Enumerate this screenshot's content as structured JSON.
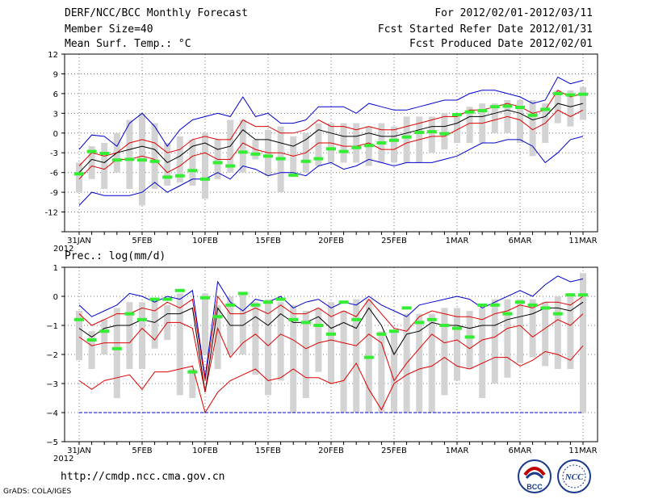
{
  "header": {
    "title": "DERF/NCC/BCC Monthly Forecast",
    "member": "Member Size=40",
    "variable": "Mean Surf. Temp.: °C",
    "period": "For 2012/02/01-2012/03/11",
    "started": "Fcst Started Refer Date 2012/01/31",
    "produced": "Fcst Produced Date 2012/02/01"
  },
  "prec_label": "Prec.: log(mm/d)",
  "footer": {
    "url": "http://cmdp.ncc.cma.gov.cn",
    "credit": "GrADS: COLA/IGES"
  },
  "logos": {
    "bcc": "BCC",
    "ncc": "NCC"
  },
  "colors": {
    "max_min": "#0000cc",
    "spread": "#dd0000",
    "mean": "#000000",
    "obs": "#33ee33",
    "box": "#d3d3d3",
    "grid": "#777777"
  },
  "chart_data": [
    {
      "type": "line",
      "title": "Mean Surf. Temp.: °C",
      "x_labels": [
        "31JAN\n2012",
        "5FEB",
        "10FEB",
        "15FEB",
        "20FEB",
        "25FEB",
        "1MAR",
        "6MAR",
        "11MAR"
      ],
      "x_label_index": [
        0,
        5,
        10,
        15,
        20,
        25,
        30,
        35,
        40
      ],
      "ylim": [
        -15,
        12
      ],
      "yticks": [
        12,
        9,
        6,
        3,
        0,
        -3,
        -6,
        -9,
        -12,
        -15
      ],
      "yticks_shown": [
        "12",
        "9",
        "6",
        "3",
        "0",
        "-3",
        "-6",
        "-9",
        "-12"
      ],
      "series": [
        {
          "name": "max",
          "color": "#0000cc",
          "values": [
            -2.5,
            -0.3,
            -0.5,
            -2,
            1.5,
            3,
            1,
            -2,
            0.5,
            2,
            2.5,
            3,
            2.5,
            5.5,
            2.5,
            3,
            1.5,
            1.5,
            2,
            4,
            4,
            4,
            3,
            4.5,
            4,
            3.5,
            3.5,
            4,
            4.5,
            5,
            5,
            6,
            6.5,
            6.5,
            6,
            5.5,
            4.5,
            5,
            8.5,
            7.5,
            8
          ]
        },
        {
          "name": "upper",
          "color": "#dd0000",
          "values": [
            -5,
            -3,
            -3.5,
            -3,
            -1.5,
            -1,
            -1.5,
            -3,
            -2.5,
            -1,
            -0.5,
            -1,
            -1,
            2,
            1,
            1,
            0,
            0,
            0.5,
            2,
            1,
            1,
            0.5,
            1,
            0.5,
            0.5,
            1,
            1.5,
            2,
            2.5,
            2.5,
            3.5,
            3.5,
            4,
            4.5,
            4,
            3,
            3.5,
            6.5,
            5.5,
            6
          ]
        },
        {
          "name": "mean",
          "color": "#000000",
          "values": [
            -6,
            -4,
            -4.5,
            -3,
            -2.5,
            -2,
            -2.5,
            -4.5,
            -3.5,
            -2,
            -1.5,
            -2.5,
            -2,
            0.5,
            -1,
            -1,
            -1.5,
            -2,
            -1,
            0.5,
            0,
            -0.5,
            -0.5,
            0,
            -0.5,
            -0.5,
            0,
            0.5,
            1,
            1,
            1.5,
            2.5,
            2.5,
            3,
            3.5,
            3,
            2,
            2.5,
            4.5,
            4,
            4.5
          ]
        },
        {
          "name": "lower",
          "color": "#dd0000",
          "values": [
            -7,
            -5,
            -5.5,
            -4,
            -4,
            -3.5,
            -4,
            -6,
            -5,
            -3.5,
            -3,
            -4,
            -4,
            -1.5,
            -2.5,
            -3,
            -3,
            -3.5,
            -3,
            -1.5,
            -1.5,
            -2,
            -2,
            -1.5,
            -2.5,
            -2.5,
            -1.5,
            -1,
            -0.5,
            -0.5,
            0.5,
            1.5,
            1.5,
            2,
            2.5,
            2,
            0.5,
            1.5,
            3.5,
            2.5,
            3.5
          ]
        },
        {
          "name": "min",
          "color": "#0000cc",
          "values": [
            -11,
            -9,
            -9.5,
            -9.5,
            -9.5,
            -9,
            -7.5,
            -9,
            -8,
            -7,
            -7,
            -6,
            -7,
            -5,
            -5.5,
            -6.5,
            -6,
            -6,
            -6.5,
            -5,
            -4.5,
            -5.5,
            -5,
            -4,
            -4.5,
            -5,
            -4.5,
            -4.5,
            -4.5,
            -4,
            -3.5,
            -2.5,
            -1.5,
            -1.5,
            -1,
            -1,
            -2,
            -4.5,
            -3,
            -1,
            -0.5
          ]
        },
        {
          "name": "observed",
          "color": "#33ee33",
          "values": [
            -6.2,
            -2.8,
            -3.1,
            -4.1,
            -4.0,
            -4.1,
            -4.3,
            -6.7,
            -6.5,
            -5.7,
            -7.0,
            -4.5,
            -5.0,
            -2.9,
            -3.2,
            -3.5,
            -3.9,
            -6.4,
            -4.3,
            -3.9,
            -2.4,
            -2.8,
            -2.2,
            -1.9,
            -1.5,
            -1.1,
            -0.6,
            0.1,
            0.2,
            -0.1,
            2.8,
            3.2,
            3.4,
            4.0,
            4.1,
            3.9,
            2.7,
            3.6,
            6.0,
            5.8,
            5.9
          ]
        }
      ],
      "boxes": {
        "high": [
          -4.5,
          -2,
          -1.5,
          0,
          2,
          3,
          1.5,
          -1.5,
          -0.5,
          -1,
          0,
          -1,
          2,
          2,
          -1,
          0.5,
          1,
          -0.5,
          0,
          1.5,
          1.5,
          1.5,
          1.5,
          1,
          1.5,
          1,
          2.5,
          2.5,
          2.5,
          3,
          3,
          4,
          4.5,
          4.5,
          5,
          5,
          5,
          4.5,
          6.5,
          6.5,
          7
        ],
        "low": [
          -9,
          -7,
          -8.5,
          -6,
          -8.5,
          -11,
          -8.5,
          -8,
          -7.5,
          -8,
          -10,
          -7,
          -6,
          -6,
          -4,
          -6.5,
          -9,
          -6.5,
          -6,
          -5,
          -4.5,
          -4.5,
          -4.5,
          -5,
          -4.5,
          -4.5,
          -4.5,
          -4.5,
          -3,
          -2.5,
          -1.5,
          -1.5,
          -1.5,
          0,
          0,
          -1.5,
          -3.5,
          -1.5,
          1.5,
          1,
          2
        ]
      }
    },
    {
      "type": "line",
      "title": "Prec.: log(mm/d)",
      "x_labels": [
        "31JAN\n2012",
        "5FEB",
        "10FEB",
        "15FEB",
        "20FEB",
        "25FEB",
        "1MAR",
        "6MAR",
        "11MAR"
      ],
      "x_label_index": [
        0,
        5,
        10,
        15,
        20,
        25,
        30,
        35,
        40
      ],
      "ylim": [
        -5,
        1
      ],
      "yticks": [
        1,
        0,
        -1,
        -2,
        -3,
        -4,
        -5
      ],
      "yticks_shown": [
        "1",
        "0",
        "−1",
        "−2",
        "−3",
        "−4",
        "−5"
      ],
      "series": [
        {
          "name": "max",
          "color": "#0000cc",
          "values": [
            -0.3,
            -0.7,
            -0.5,
            -0.3,
            0.1,
            0,
            -0.2,
            0,
            -0.1,
            0.2,
            -2.8,
            0.5,
            -0.2,
            -0.5,
            -0.1,
            -0.2,
            0,
            -0.4,
            -0.2,
            -0.1,
            -0.4,
            -0.2,
            -0.3,
            0,
            -0.3,
            -0.5,
            -0.7,
            -0.3,
            -0.2,
            -0.1,
            0,
            -0.1,
            -0.4,
            -0.2,
            0,
            0.2,
            0,
            0.4,
            0.7,
            0.5,
            0.6
          ]
        },
        {
          "name": "upper",
          "color": "#dd0000",
          "values": [
            -0.6,
            -1,
            -0.8,
            -0.6,
            -0.6,
            -0.4,
            -0.5,
            -0.2,
            -0.4,
            -0.1,
            -2.9,
            0,
            -0.6,
            -0.6,
            -0.4,
            -0.6,
            -0.3,
            -0.6,
            -0.6,
            -0.4,
            -0.7,
            -0.5,
            -0.7,
            -0.1,
            -0.6,
            -1.1,
            -1.2,
            -0.7,
            -0.5,
            -0.6,
            -0.7,
            -0.7,
            -0.8,
            -0.6,
            -0.5,
            -0.3,
            -0.4,
            -0.2,
            -0.2,
            -0.3,
            0
          ]
        },
        {
          "name": "mean",
          "color": "#000000",
          "values": [
            -1.1,
            -1.4,
            -1.1,
            -1,
            -1,
            -0.8,
            -0.9,
            -0.6,
            -0.6,
            -0.4,
            -3.3,
            -0.4,
            -1,
            -1,
            -0.7,
            -1,
            -0.6,
            -0.9,
            -0.9,
            -0.7,
            -1.1,
            -0.9,
            -1.1,
            -0.4,
            -1,
            -2,
            -1.3,
            -1.2,
            -0.9,
            -1,
            -1,
            -1.1,
            -1,
            -1,
            -0.8,
            -0.7,
            -0.6,
            -0.4,
            -0.4,
            -0.5,
            -0.2
          ]
        },
        {
          "name": "lower",
          "color": "#dd0000",
          "values": [
            -1.4,
            -1.7,
            -1.6,
            -1.6,
            -1.6,
            -1.1,
            -1.5,
            -0.9,
            -0.9,
            -1.1,
            -3.3,
            -1.1,
            -2.1,
            -1.6,
            -1.3,
            -1.7,
            -1.3,
            -1.5,
            -1.8,
            -1.6,
            -1.5,
            -1.6,
            -1.7,
            -1.3,
            -1.6,
            -2.9,
            -2.3,
            -1.8,
            -1.3,
            -1.6,
            -1.5,
            -1.8,
            -1.5,
            -1.4,
            -1.1,
            -1,
            -1.4,
            -1.1,
            -0.8,
            -1,
            -0.6
          ]
        },
        {
          "name": "min",
          "color": "#dd0000",
          "values": [
            -2.9,
            -3.2,
            -2.9,
            -2.8,
            -2.7,
            -3.2,
            -2.6,
            -2.6,
            -2.5,
            -2.4,
            -4,
            -3.3,
            -2.9,
            -2.7,
            -2.5,
            -2.9,
            -2.8,
            -2.5,
            -2.8,
            -2.8,
            -3,
            -2.9,
            -2.3,
            -3.2,
            -3.9,
            -3,
            -2.7,
            -2.5,
            -2.4,
            -2.1,
            -2.4,
            -2.5,
            -2.3,
            -2.1,
            -2.1,
            -2.4,
            -2.2,
            -1.9,
            -2.0,
            -2.2,
            -1.7
          ]
        },
        {
          "name": "floor",
          "color": "#0000cc",
          "values": [
            -4,
            -4,
            -4,
            -4,
            -4,
            -4,
            -4,
            -4,
            -4,
            -4,
            -4,
            -4,
            -4,
            -4,
            -4,
            -4,
            -4,
            -4,
            -4,
            -4,
            -4,
            -4,
            -4,
            -4,
            -4,
            -4,
            -4,
            -4,
            -4,
            -4,
            -4,
            -4,
            -4,
            -4,
            -4,
            -4,
            -4,
            -4,
            -4,
            -4,
            -4
          ]
        },
        {
          "name": "observed",
          "color": "#33ee33",
          "values": [
            -0.8,
            -1.5,
            -1.2,
            -1.8,
            -0.6,
            -0.8,
            -0.1,
            -0.1,
            0.2,
            -2.6,
            -0.05,
            -0.7,
            -0.3,
            0.1,
            -0.3,
            -0.2,
            -0.1,
            -0.8,
            -0.9,
            -1.0,
            -1.3,
            -0.2,
            -0.8,
            -2.1,
            -1.3,
            -1.2,
            -0.4,
            -0.9,
            -0.8,
            -1.0,
            -1.1,
            -1.4,
            -0.3,
            -0.3,
            -0.6,
            -0.2,
            -0.3,
            -0.4,
            -0.6,
            0.05,
            0.05
          ]
        }
      ],
      "boxes": {
        "high": [
          -0.5,
          -1.2,
          -0.8,
          -0.4,
          -0.2,
          -0.2,
          -0.1,
          -0.3,
          0.1,
          -2.5,
          0.1,
          -0.3,
          0,
          0.1,
          -0.2,
          -0.1,
          -0.2,
          -0.3,
          -0.5,
          -0.4,
          -0.2,
          -0.5,
          -0.1,
          -0.1,
          -1.2,
          -1.2,
          -0.6,
          -0.6,
          -0.6,
          -0.4,
          -0.4,
          -0.5,
          -0.4,
          -0.1,
          -0.1,
          -0.1,
          -0.1,
          -0.2,
          0,
          0.1,
          0.8
        ],
        "low": [
          -2.2,
          -2.5,
          -2,
          -3.5,
          -2.5,
          -2.5,
          -1.8,
          -1.5,
          -3.4,
          -3.5,
          -2,
          -2.5,
          -2,
          -2,
          -2.7,
          -3.4,
          -2.9,
          -4,
          -3.5,
          -2.6,
          -3,
          -4,
          -4,
          -4,
          -4,
          -4,
          -4,
          -4,
          -4,
          -3.4,
          -2.9,
          -2.5,
          -3.5,
          -3,
          -2.8,
          -2.3,
          -2.1,
          -2.4,
          -2.5,
          -2.5,
          -4
        ]
      }
    }
  ]
}
